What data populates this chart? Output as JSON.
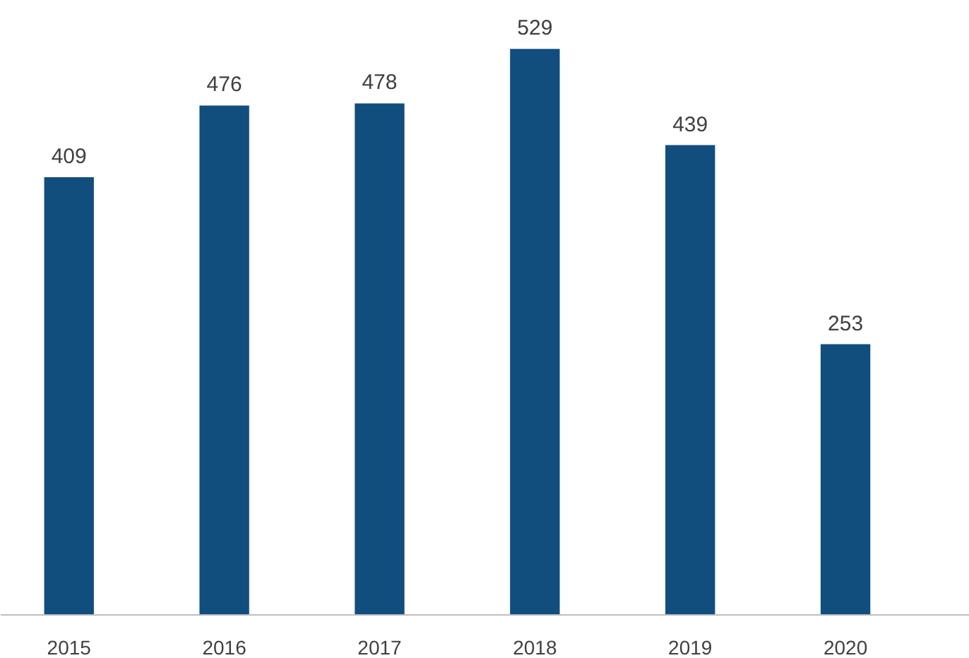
{
  "chart_data": {
    "type": "bar",
    "categories": [
      "2015",
      "2016",
      "2017",
      "2018",
      "2019",
      "2020"
    ],
    "values": [
      409,
      476,
      478,
      529,
      439,
      253
    ],
    "color": "#114e7e",
    "data_labels": true,
    "grid": false
  }
}
